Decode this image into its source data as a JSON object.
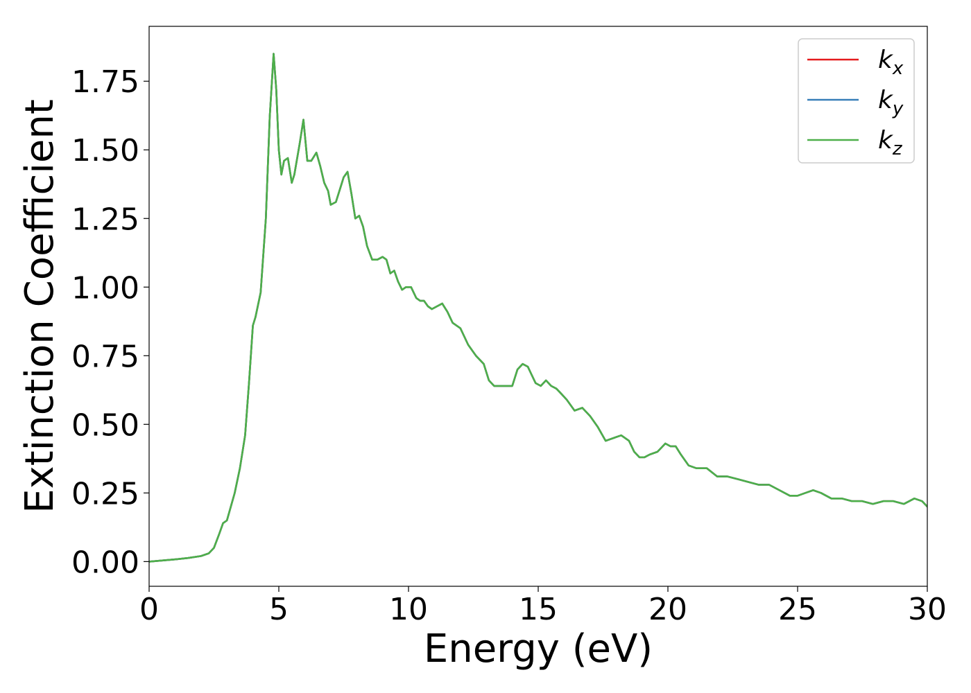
{
  "chart_data": {
    "type": "line",
    "xlabel": "Energy (eV)",
    "ylabel": "Extinction Coefficient",
    "xlim": [
      0,
      30
    ],
    "ylim": [
      -0.09,
      1.95
    ],
    "xticks": [
      0,
      5,
      10,
      15,
      20,
      25,
      30
    ],
    "yticks": [
      0.0,
      0.25,
      0.5,
      0.75,
      1.0,
      1.25,
      1.5,
      1.75
    ],
    "xtick_labels": [
      "0",
      "5",
      "10",
      "15",
      "20",
      "25",
      "30"
    ],
    "ytick_labels": [
      "0.00",
      "0.25",
      "0.50",
      "0.75",
      "1.00",
      "1.25",
      "1.50",
      "1.75"
    ],
    "grid": false,
    "legend_position": "top-right",
    "x": [
      0,
      0.5,
      1.0,
      1.5,
      2.0,
      2.3,
      2.5,
      2.7,
      2.85,
      3.0,
      3.15,
      3.3,
      3.5,
      3.7,
      3.85,
      4.0,
      4.1,
      4.3,
      4.5,
      4.65,
      4.8,
      4.9,
      5.0,
      5.1,
      5.2,
      5.35,
      5.5,
      5.6,
      5.8,
      5.95,
      6.1,
      6.25,
      6.45,
      6.6,
      6.75,
      6.9,
      7.0,
      7.2,
      7.4,
      7.5,
      7.65,
      7.8,
      7.95,
      8.1,
      8.25,
      8.4,
      8.6,
      8.8,
      9.0,
      9.15,
      9.3,
      9.45,
      9.6,
      9.75,
      9.9,
      10.1,
      10.3,
      10.45,
      10.6,
      10.75,
      10.9,
      11.1,
      11.3,
      11.5,
      11.7,
      12.0,
      12.3,
      12.6,
      12.9,
      13.1,
      13.3,
      13.5,
      13.8,
      14.0,
      14.2,
      14.4,
      14.6,
      14.75,
      14.9,
      15.1,
      15.3,
      15.5,
      15.7,
      15.9,
      16.1,
      16.4,
      16.7,
      17.0,
      17.3,
      17.6,
      17.9,
      18.2,
      18.5,
      18.7,
      18.9,
      19.1,
      19.3,
      19.6,
      19.9,
      20.1,
      20.3,
      20.5,
      20.8,
      21.1,
      21.5,
      21.9,
      22.3,
      22.7,
      23.1,
      23.5,
      23.9,
      24.3,
      24.7,
      25.0,
      25.3,
      25.6,
      25.9,
      26.3,
      26.7,
      27.1,
      27.5,
      27.9,
      28.3,
      28.7,
      29.1,
      29.5,
      29.8,
      30.0
    ],
    "series": [
      {
        "name": "k_x",
        "color": "#e41a1c",
        "y": [
          0.0,
          0.004,
          0.008,
          0.013,
          0.02,
          0.03,
          0.05,
          0.1,
          0.14,
          0.15,
          0.2,
          0.25,
          0.34,
          0.46,
          0.65,
          0.86,
          0.89,
          0.98,
          1.25,
          1.62,
          1.85,
          1.72,
          1.5,
          1.41,
          1.46,
          1.47,
          1.38,
          1.41,
          1.52,
          1.61,
          1.46,
          1.46,
          1.49,
          1.44,
          1.38,
          1.35,
          1.3,
          1.31,
          1.37,
          1.4,
          1.42,
          1.34,
          1.25,
          1.26,
          1.22,
          1.15,
          1.1,
          1.1,
          1.11,
          1.1,
          1.05,
          1.06,
          1.02,
          0.99,
          1.0,
          1.0,
          0.96,
          0.95,
          0.95,
          0.93,
          0.92,
          0.93,
          0.94,
          0.91,
          0.87,
          0.85,
          0.79,
          0.75,
          0.72,
          0.66,
          0.64,
          0.64,
          0.64,
          0.64,
          0.7,
          0.72,
          0.71,
          0.68,
          0.65,
          0.64,
          0.66,
          0.64,
          0.63,
          0.61,
          0.59,
          0.55,
          0.56,
          0.53,
          0.49,
          0.44,
          0.45,
          0.46,
          0.44,
          0.4,
          0.38,
          0.38,
          0.39,
          0.4,
          0.43,
          0.42,
          0.42,
          0.39,
          0.35,
          0.34,
          0.34,
          0.31,
          0.31,
          0.3,
          0.29,
          0.28,
          0.28,
          0.26,
          0.24,
          0.24,
          0.25,
          0.26,
          0.25,
          0.23,
          0.23,
          0.22,
          0.22,
          0.21,
          0.22,
          0.22,
          0.21,
          0.23,
          0.22,
          0.2
        ]
      },
      {
        "name": "k_y",
        "color": "#377eb8",
        "y": [
          0.0,
          0.004,
          0.008,
          0.013,
          0.02,
          0.03,
          0.05,
          0.1,
          0.14,
          0.15,
          0.2,
          0.25,
          0.34,
          0.46,
          0.65,
          0.86,
          0.89,
          0.98,
          1.25,
          1.62,
          1.85,
          1.72,
          1.5,
          1.41,
          1.46,
          1.47,
          1.38,
          1.41,
          1.52,
          1.61,
          1.46,
          1.46,
          1.49,
          1.44,
          1.38,
          1.35,
          1.3,
          1.31,
          1.37,
          1.4,
          1.42,
          1.34,
          1.25,
          1.26,
          1.22,
          1.15,
          1.1,
          1.1,
          1.11,
          1.1,
          1.05,
          1.06,
          1.02,
          0.99,
          1.0,
          1.0,
          0.96,
          0.95,
          0.95,
          0.93,
          0.92,
          0.93,
          0.94,
          0.91,
          0.87,
          0.85,
          0.79,
          0.75,
          0.72,
          0.66,
          0.64,
          0.64,
          0.64,
          0.64,
          0.7,
          0.72,
          0.71,
          0.68,
          0.65,
          0.64,
          0.66,
          0.64,
          0.63,
          0.61,
          0.59,
          0.55,
          0.56,
          0.53,
          0.49,
          0.44,
          0.45,
          0.46,
          0.44,
          0.4,
          0.38,
          0.38,
          0.39,
          0.4,
          0.43,
          0.42,
          0.42,
          0.39,
          0.35,
          0.34,
          0.34,
          0.31,
          0.31,
          0.3,
          0.29,
          0.28,
          0.28,
          0.26,
          0.24,
          0.24,
          0.25,
          0.26,
          0.25,
          0.23,
          0.23,
          0.22,
          0.22,
          0.21,
          0.22,
          0.22,
          0.21,
          0.23,
          0.22,
          0.2
        ]
      },
      {
        "name": "k_z",
        "color": "#4daf4a",
        "y": [
          0.0,
          0.004,
          0.008,
          0.013,
          0.02,
          0.03,
          0.05,
          0.1,
          0.14,
          0.15,
          0.2,
          0.25,
          0.34,
          0.46,
          0.65,
          0.86,
          0.89,
          0.98,
          1.25,
          1.62,
          1.85,
          1.72,
          1.5,
          1.41,
          1.46,
          1.47,
          1.38,
          1.41,
          1.52,
          1.61,
          1.46,
          1.46,
          1.49,
          1.44,
          1.38,
          1.35,
          1.3,
          1.31,
          1.37,
          1.4,
          1.42,
          1.34,
          1.25,
          1.26,
          1.22,
          1.15,
          1.1,
          1.1,
          1.11,
          1.1,
          1.05,
          1.06,
          1.02,
          0.99,
          1.0,
          1.0,
          0.96,
          0.95,
          0.95,
          0.93,
          0.92,
          0.93,
          0.94,
          0.91,
          0.87,
          0.85,
          0.79,
          0.75,
          0.72,
          0.66,
          0.64,
          0.64,
          0.64,
          0.64,
          0.7,
          0.72,
          0.71,
          0.68,
          0.65,
          0.64,
          0.66,
          0.64,
          0.63,
          0.61,
          0.59,
          0.55,
          0.56,
          0.53,
          0.49,
          0.44,
          0.45,
          0.46,
          0.44,
          0.4,
          0.38,
          0.38,
          0.39,
          0.4,
          0.43,
          0.42,
          0.42,
          0.39,
          0.35,
          0.34,
          0.34,
          0.31,
          0.31,
          0.3,
          0.29,
          0.28,
          0.28,
          0.26,
          0.24,
          0.24,
          0.25,
          0.26,
          0.25,
          0.23,
          0.23,
          0.22,
          0.22,
          0.21,
          0.22,
          0.22,
          0.21,
          0.23,
          0.22,
          0.2
        ]
      }
    ],
    "legend": [
      {
        "symbol": "k",
        "subscript": "x",
        "color": "#e41a1c"
      },
      {
        "symbol": "k",
        "subscript": "y",
        "color": "#377eb8"
      },
      {
        "symbol": "k",
        "subscript": "z",
        "color": "#4daf4a"
      }
    ]
  }
}
